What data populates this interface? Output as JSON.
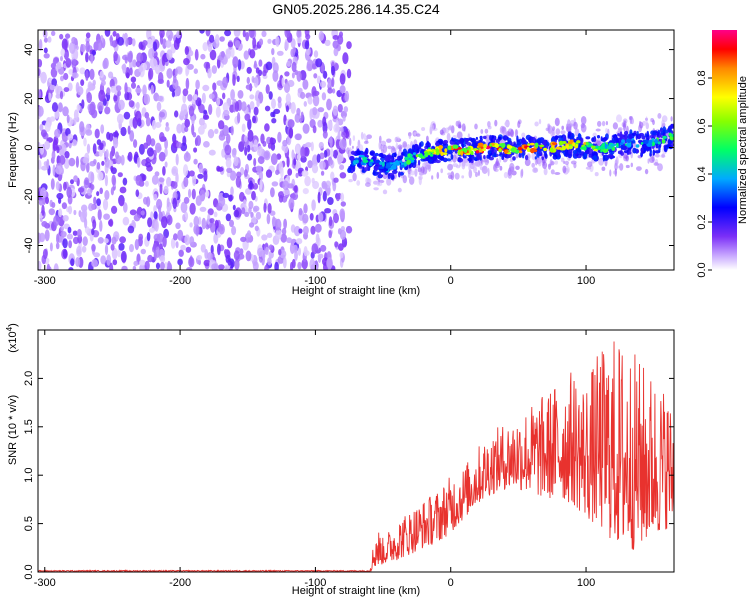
{
  "title": "GN05.2025.286.14.35.C24",
  "chart_data": [
    {
      "type": "heatmap",
      "title": "GN05.2025.286.14.35.C24",
      "xlabel": "Height of straight line (km)",
      "ylabel": "Frequency (Hz)",
      "xlim": [
        -305,
        165
      ],
      "ylim": [
        -50,
        48
      ],
      "x_ticks": [
        -300,
        -200,
        -100,
        0,
        100
      ],
      "y_ticks": [
        -40,
        -20,
        0,
        20,
        40
      ],
      "x_tick_labels": [
        "-300",
        "-200",
        "-100",
        "0",
        "100"
      ],
      "y_tick_labels": [
        "-40",
        "-20",
        "0",
        "20",
        "40"
      ],
      "noise_region_x": [
        -305,
        -75
      ],
      "signal_track": {
        "x": [
          -75,
          -65,
          -55,
          -45,
          -35,
          -25,
          -15,
          -5,
          5,
          15,
          25,
          35,
          45,
          55,
          65,
          75,
          85,
          95,
          105,
          115,
          125,
          135,
          145,
          155,
          165
        ],
        "frequency": [
          -5,
          -5,
          -7,
          -8,
          -6,
          -3,
          -2,
          -1,
          -1,
          -1,
          0,
          0,
          -1,
          0,
          0,
          0,
          1,
          1,
          0,
          0,
          1,
          2,
          1,
          3,
          5
        ],
        "amplitude": [
          0.3,
          0.5,
          0.45,
          0.4,
          0.5,
          0.6,
          0.7,
          0.85,
          0.9,
          0.9,
          0.95,
          0.95,
          0.85,
          0.9,
          0.9,
          0.95,
          0.85,
          0.8,
          0.7,
          0.55,
          0.5,
          0.5,
          0.45,
          0.6,
          0.65
        ]
      },
      "colorbar": {
        "label": "Normalized spectral amplitude",
        "range": [
          0,
          1
        ],
        "ticks": [
          "0.0",
          "0.2",
          "0.4",
          "0.6",
          "0.8"
        ],
        "colors": [
          "#ffffff",
          "#7b2ff7",
          "#0000ff",
          "#00ccff",
          "#00ff66",
          "#ffff00",
          "#ff8800",
          "#ff0000",
          "#ff0088"
        ]
      },
      "grid": false
    },
    {
      "type": "line",
      "xlabel": "Height of straight line (km)",
      "ylabel": "SNR (10 * v/v)",
      "ylabel_multiplier": "(x10^4)",
      "xlim": [
        -305,
        165
      ],
      "ylim": [
        0,
        2.5
      ],
      "x_ticks": [
        -300,
        -200,
        -100,
        0,
        100
      ],
      "y_ticks": [
        0,
        0.5,
        1.0,
        1.5,
        2.0
      ],
      "x_tick_labels": [
        "-300",
        "-200",
        "-100",
        "0",
        "100"
      ],
      "y_tick_labels": [
        "0.0",
        "0.5",
        "1.0",
        "1.5",
        "2.0"
      ],
      "series_color": "#e8322e",
      "envelope": {
        "x": [
          -305,
          -200,
          -100,
          -60,
          -55,
          -50,
          -40,
          -30,
          -20,
          -10,
          0,
          10,
          20,
          30,
          40,
          50,
          60,
          70,
          80,
          90,
          100,
          110,
          120,
          130,
          140,
          150,
          160,
          165
        ],
        "low": [
          0.0,
          0.0,
          0.0,
          0.0,
          0.05,
          0.08,
          0.12,
          0.18,
          0.25,
          0.3,
          0.4,
          0.55,
          0.7,
          0.8,
          0.85,
          0.85,
          0.8,
          0.75,
          0.75,
          0.7,
          0.55,
          0.45,
          0.3,
          0.2,
          0.25,
          0.35,
          0.45,
          0.5
        ],
        "high": [
          0.02,
          0.02,
          0.02,
          0.03,
          0.5,
          0.35,
          0.55,
          0.65,
          0.75,
          0.85,
          1.0,
          1.1,
          1.3,
          1.45,
          1.55,
          1.65,
          1.75,
          1.85,
          2.0,
          2.1,
          2.0,
          2.3,
          2.45,
          2.4,
          2.2,
          2.05,
          1.9,
          1.6
        ]
      },
      "grid": false
    }
  ]
}
